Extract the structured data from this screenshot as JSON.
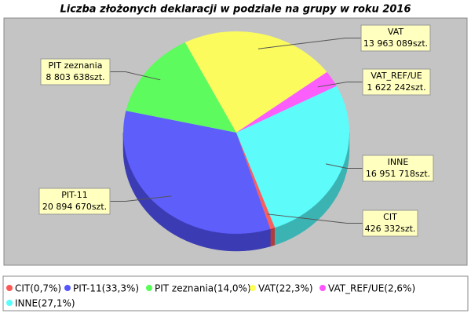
{
  "chart_data": {
    "type": "pie",
    "title": "Liczba złożonych deklaracji w podziale na grupy w roku 2016",
    "categories": [
      "CIT",
      "PIT-11",
      "PIT zeznania",
      "VAT",
      "VAT_REF/UE",
      "INNE"
    ],
    "values": [
      426332,
      20894670,
      8803638,
      13963089,
      1622242,
      16951718
    ],
    "value_labels": [
      "426 332szt.",
      "20 894 670szt.",
      "8 803 638szt.",
      "13 963 089szt.",
      "1 622 242szt.",
      "16 951 718szt."
    ],
    "legend_labels": [
      "CIT(0,7%)",
      "PIT-11(33,3%)",
      "PIT zeznania(14,0%)",
      "VAT(22,3%)",
      "VAT_REF/UE(2,6%)",
      "INNE(27,1%)"
    ],
    "colors": [
      "#ff5555",
      "#5555ff",
      "#55ff55",
      "#ffff55",
      "#ff55ff",
      "#55ffff"
    ]
  }
}
